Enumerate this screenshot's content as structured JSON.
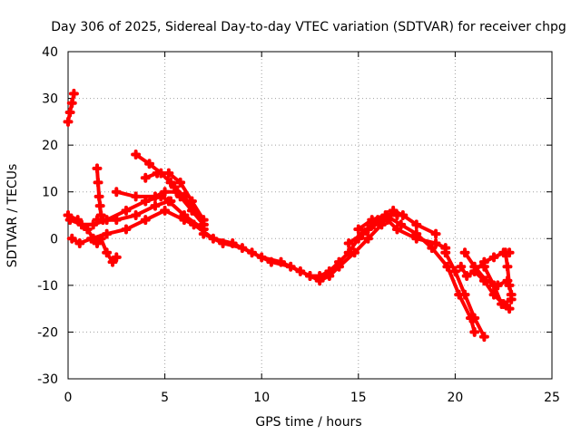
{
  "chart_data": {
    "type": "scatter",
    "title": "Day 306 of 2025, Sidereal Day-to-day VTEC variation (SDTVAR) for receiver chpg",
    "xlabel": "GPS time / hours",
    "ylabel": "SDTVAR / TECUs",
    "xlim": [
      0,
      25
    ],
    "ylim": [
      -30,
      40
    ],
    "xticks": [
      0,
      5,
      10,
      15,
      20,
      25
    ],
    "yticks": [
      -30,
      -20,
      -10,
      0,
      10,
      20,
      30,
      40
    ],
    "grid": true,
    "marker": "+",
    "color": "#ff0000",
    "series": [
      {
        "name": "s1",
        "x": [
          0.0,
          0.1,
          0.2,
          0.3
        ],
        "y": [
          25,
          27,
          29,
          31
        ]
      },
      {
        "name": "s2",
        "x": [
          0.0,
          0.5,
          1.0,
          1.3,
          1.5,
          1.7,
          2.0,
          2.3,
          2.5
        ],
        "y": [
          5,
          4,
          2,
          0,
          -1,
          0,
          -3,
          -5,
          -4
        ]
      },
      {
        "name": "s3",
        "x": [
          1.5,
          1.55,
          1.6,
          1.65,
          1.7,
          1.8
        ],
        "y": [
          15,
          12,
          9,
          7,
          5,
          4
        ]
      },
      {
        "name": "s4",
        "x": [
          0.2,
          0.6,
          1.2,
          2.0,
          3.0,
          4.0,
          5.0,
          6.0,
          7.0
        ],
        "y": [
          0,
          -1,
          0,
          1,
          2,
          4,
          6,
          4,
          2
        ]
      },
      {
        "name": "s5",
        "x": [
          1.5,
          2.5,
          3.5,
          4.5,
          5.2,
          6.0,
          7.0
        ],
        "y": [
          4,
          4,
          5,
          7,
          8,
          5,
          2
        ]
      },
      {
        "name": "s6",
        "x": [
          2.5,
          3.5,
          4.5,
          5.0,
          5.6,
          6.4,
          7.0
        ],
        "y": [
          10,
          9,
          9,
          10,
          10,
          6,
          3
        ]
      },
      {
        "name": "s7",
        "x": [
          3.5,
          4.2,
          4.8,
          5.3,
          5.8,
          6.5,
          7.0
        ],
        "y": [
          18,
          16,
          14,
          12,
          9,
          6,
          3
        ]
      },
      {
        "name": "s8",
        "x": [
          4.0,
          4.6,
          5.2,
          5.8,
          6.4,
          7.0
        ],
        "y": [
          13,
          14,
          14,
          12,
          8,
          4
        ]
      },
      {
        "name": "s9",
        "x": [
          5.5,
          6.0,
          6.5,
          7.0
        ],
        "y": [
          11,
          9,
          6,
          3
        ]
      },
      {
        "name": "s10",
        "x": [
          0.1,
          0.7,
          1.3,
          2.0,
          3.0,
          4.0,
          4.8,
          5.3
        ],
        "y": [
          4,
          3,
          3,
          4,
          6,
          8,
          9,
          8
        ]
      },
      {
        "name": "s11",
        "x": [
          7.0,
          8.0,
          9.0,
          10.0,
          11.0,
          12.0,
          12.5,
          13.0,
          13.5,
          14.0,
          14.5,
          15.0,
          15.5,
          16.0,
          16.5,
          17.0
        ],
        "y": [
          1,
          -1,
          -2,
          -4,
          -5,
          -7,
          -8,
          -8,
          -7,
          -5,
          -3,
          0,
          2,
          4,
          5,
          5
        ]
      },
      {
        "name": "s12",
        "x": [
          6.5,
          7.5,
          8.5,
          9.5,
          10.5,
          11.5,
          12.5,
          13.0,
          13.5,
          14.0,
          14.8,
          15.5,
          16.2,
          16.8,
          17.3,
          18.0,
          19.0
        ],
        "y": [
          3,
          0,
          -1,
          -3,
          -5,
          -6,
          -8,
          -9,
          -8,
          -6,
          -3,
          0,
          3,
          6,
          5,
          3,
          1
        ]
      },
      {
        "name": "s13",
        "x": [
          14.5,
          15.2,
          15.8,
          16.5,
          17.0,
          18.0,
          19.0,
          19.5
        ],
        "y": [
          -1,
          1,
          3,
          4,
          2,
          0,
          -1,
          -2
        ]
      },
      {
        "name": "s14",
        "x": [
          15.0,
          15.7,
          16.4,
          17.2,
          18.0,
          18.8,
          19.6,
          20.2,
          20.8,
          21.0
        ],
        "y": [
          2,
          4,
          5,
          3,
          1,
          -2,
          -6,
          -12,
          -17,
          -20
        ]
      },
      {
        "name": "s15",
        "x": [
          19.5,
          20.0,
          20.5,
          21.0,
          21.5
        ],
        "y": [
          -3,
          -7,
          -12,
          -17,
          -21
        ]
      },
      {
        "name": "s16",
        "x": [
          20.3,
          20.6,
          21.0,
          21.5,
          22.0,
          22.5,
          22.8
        ],
        "y": [
          -6,
          -8,
          -7,
          -5,
          -4,
          -3,
          -3
        ]
      },
      {
        "name": "s17",
        "x": [
          20.5,
          21.0,
          21.6,
          22.2,
          22.7
        ],
        "y": [
          -3,
          -6,
          -9,
          -10,
          -9
        ]
      },
      {
        "name": "s18",
        "x": [
          21.0,
          21.5,
          22.0,
          22.5,
          22.9
        ],
        "y": [
          -7,
          -9,
          -12,
          -14,
          -13
        ]
      },
      {
        "name": "s19",
        "x": [
          21.5,
          22.0,
          22.4,
          22.8
        ],
        "y": [
          -6,
          -10,
          -14,
          -15
        ]
      },
      {
        "name": "s20",
        "x": [
          22.6,
          22.7,
          22.8,
          22.9
        ],
        "y": [
          -3,
          -6,
          -10,
          -12
        ]
      }
    ]
  }
}
